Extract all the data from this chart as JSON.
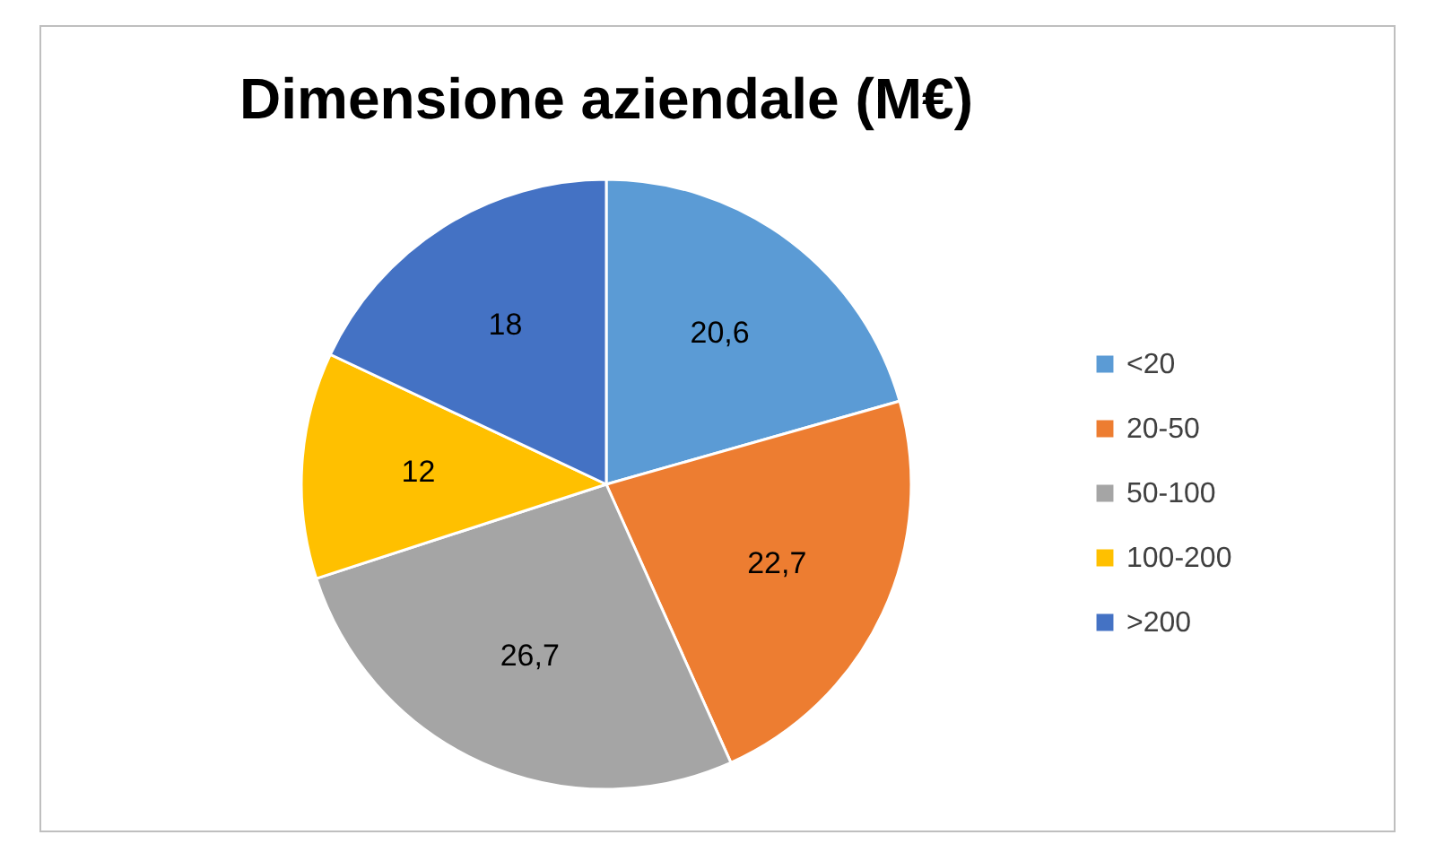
{
  "chart_data": {
    "type": "pie",
    "title": "Dimensione aziendale (M€)",
    "categories": [
      "<20",
      "20-50",
      "50-100",
      "100-200",
      ">200"
    ],
    "values": [
      20.6,
      22.7,
      26.7,
      12,
      18
    ],
    "value_labels": [
      "20,6",
      "22,7",
      "26,7",
      "12",
      "18"
    ],
    "colors": [
      "#5b9bd5",
      "#ed7d31",
      "#a5a5a5",
      "#ffc000",
      "#4472c4"
    ],
    "legend": "right"
  }
}
